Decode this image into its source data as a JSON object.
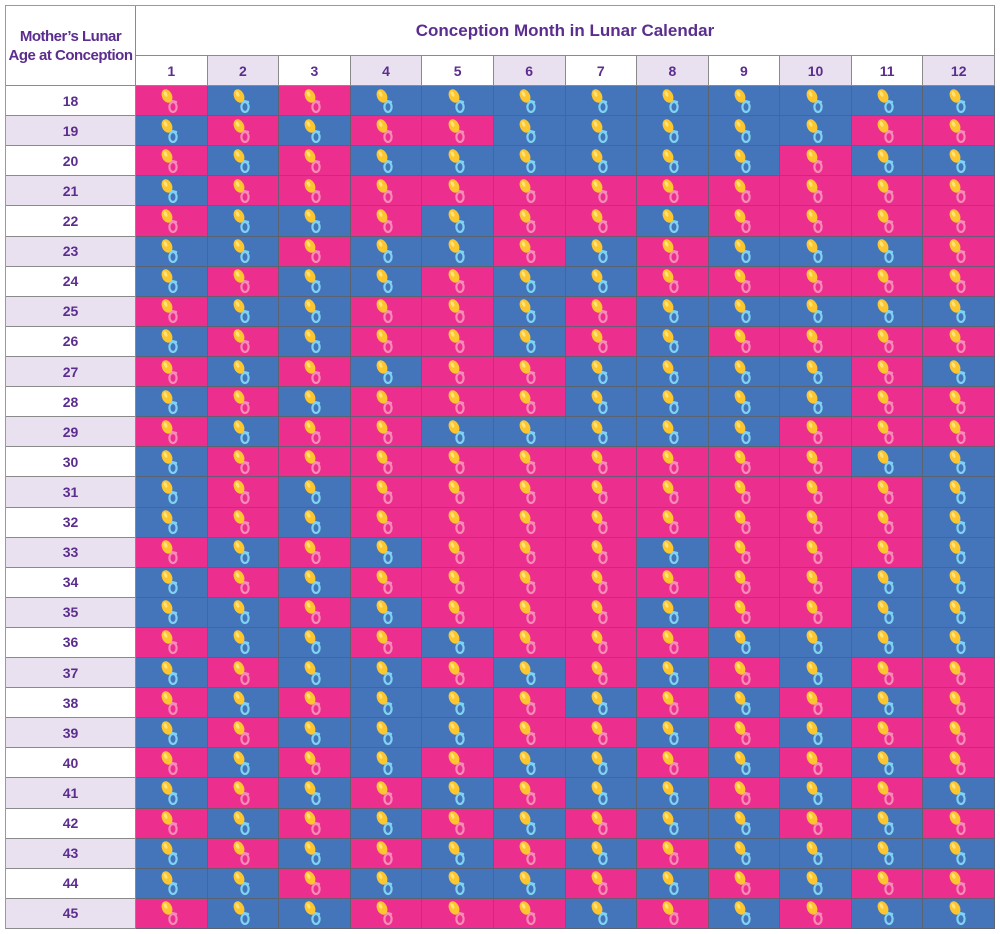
{
  "chart_data": {
    "type": "heatmap",
    "corner_label": "Mother’s Lunar Age at Conception",
    "title": "Conception Month in Lunar Calendar",
    "columns": [
      "1",
      "2",
      "3",
      "4",
      "5",
      "6",
      "7",
      "8",
      "9",
      "10",
      "11",
      "12"
    ],
    "row_labels": [
      "18",
      "19",
      "20",
      "21",
      "22",
      "23",
      "24",
      "25",
      "26",
      "27",
      "28",
      "29",
      "30",
      "31",
      "32",
      "33",
      "34",
      "35",
      "36",
      "37",
      "38",
      "39",
      "40",
      "41",
      "42",
      "43",
      "44",
      "45"
    ],
    "encoding": {
      "G": "girl",
      "B": "boy"
    },
    "colors": {
      "girl": "#ec2e8f",
      "boy": "#4474b9",
      "girl_ring": "#f78cb6",
      "boy_ring": "#7fd3f2",
      "pacifier": "#fdc52e",
      "header_alt": "#e9e1f0",
      "text": "#5b2d8e"
    },
    "icon": "pacifier-icon",
    "rows": [
      "GBGBBBBBBBBB",
      "BGBGGBBBBBGG",
      "GBGBBBBBBGBB",
      "BGGGGGGGGGGG",
      "GBBGBGGBGGGG",
      "BBGBBGBGBBBG",
      "BGBBGBBGGGGG",
      "GBBGGBGBBBBB",
      "BGBGGBGBGGGG",
      "GBGBGGBBBBGB",
      "BGBGGGBBBBGG",
      "GBGGBBBBBGGG",
      "BGGGGGGGGGBB",
      "BGBGGGGGGGGB",
      "BGBGGGGGGGGB",
      "GBGBGGGBGGGB",
      "BGBGGGGGGGBB",
      "BBGBGGGBGGBB",
      "GBBGBGGGBBBB",
      "BGBBGBGBGBGG",
      "GBGBBGBGBGBG",
      "BGBBBGGBGBGG",
      "GBGBGBBGBGBG",
      "BGBGBGBBGBGB",
      "GBGBGBGBBGBG",
      "BGBGBGBGBBBB",
      "BBGBBBGBGBGG",
      "GBBGGGBGBGBB"
    ]
  }
}
